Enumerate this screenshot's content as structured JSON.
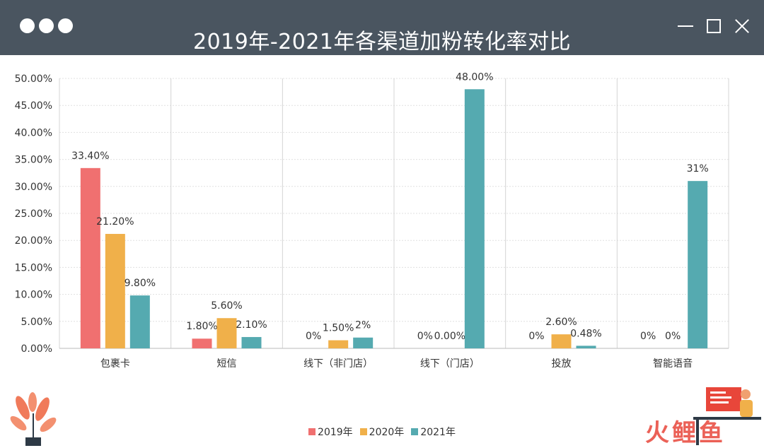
{
  "window": {
    "title": "2019年-2021年各渠道加粉转化率对比"
  },
  "watermark": "火鲤鱼",
  "colors": {
    "titlebar": "#4a5560",
    "series_2019": "#f07070",
    "series_2020": "#f0b04a",
    "series_2021": "#55aab0"
  },
  "chart_data": {
    "type": "bar",
    "title": "2019年-2021年各渠道加粉转化率对比",
    "categories": [
      "包裹卡",
      "短信",
      "线下（非门店）",
      "线下（门店）",
      "投放",
      "智能语音"
    ],
    "series": [
      {
        "name": "2019年",
        "values": [
          33.4,
          1.8,
          0,
          null,
          0,
          0
        ],
        "labels": [
          "33.40%",
          "1.80%",
          "0%",
          "0%",
          "0%",
          "0%"
        ]
      },
      {
        "name": "2020年",
        "values": [
          21.2,
          5.6,
          1.5,
          0,
          2.6,
          0
        ],
        "labels": [
          "21.20%",
          "5.60%",
          "1.50%",
          "0.00%",
          "2.60%",
          "0%"
        ]
      },
      {
        "name": "2021年",
        "values": [
          9.8,
          2.1,
          2,
          48,
          0.48,
          31
        ],
        "labels": [
          "9.80%",
          "2.10%",
          "2%",
          "48.00%",
          "0.48%",
          "31%"
        ]
      }
    ],
    "yticks": [
      "0.00%",
      "5.00%",
      "10.00%",
      "15.00%",
      "20.00%",
      "25.00%",
      "30.00%",
      "35.00%",
      "40.00%",
      "45.00%",
      "50.00%"
    ],
    "ylim": [
      0,
      50
    ],
    "grid": true,
    "legend": "bottom-center"
  }
}
